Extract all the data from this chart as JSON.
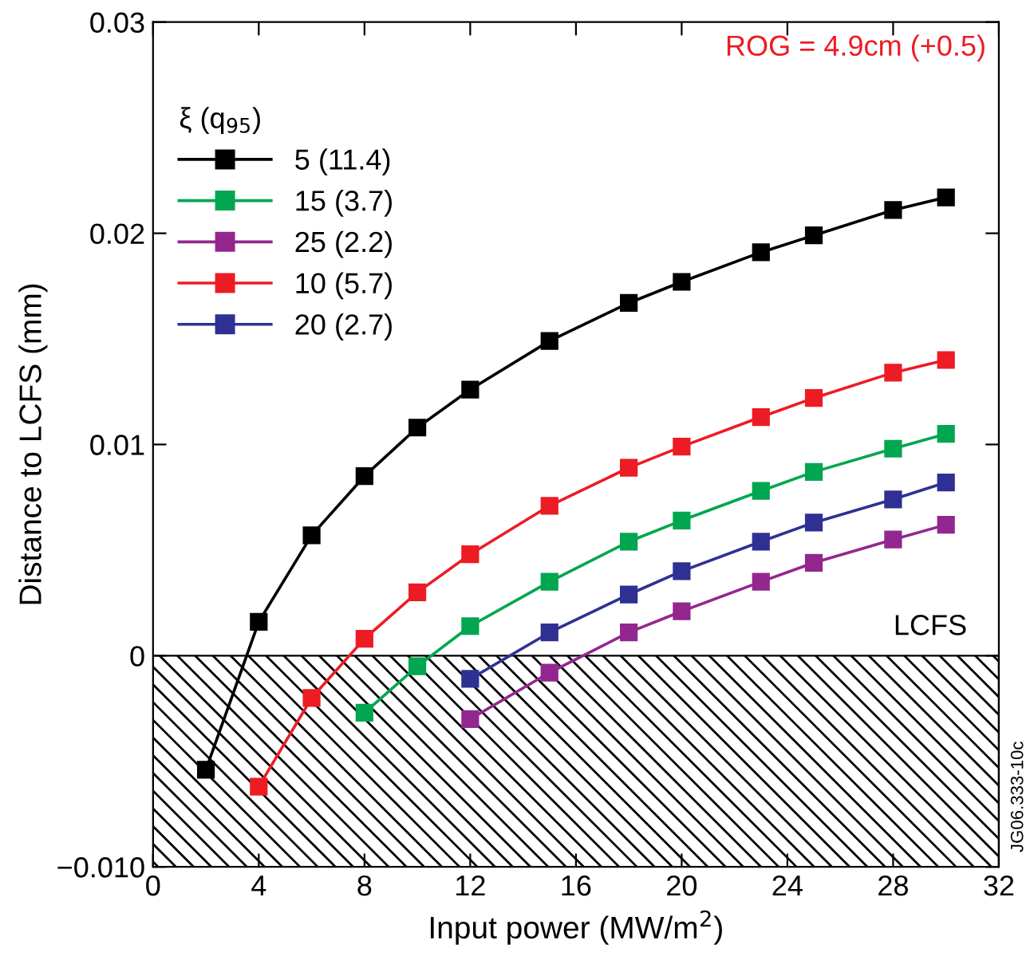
{
  "chart_data": {
    "type": "line",
    "xlabel": "Input power (MW/m$^{2}$)",
    "ylabel": "Distance to LCFS (mm)",
    "legend_title": "ξ (q$_{95}$)",
    "legend": "top left",
    "marker": "square",
    "line_style": "solid",
    "grid": false,
    "xlim": [
      0,
      32
    ],
    "xticks": [
      0,
      4,
      8,
      12,
      16,
      20,
      24,
      28,
      32
    ],
    "ylim": [
      -0.01,
      0.03
    ],
    "yticks": [
      {
        "value": -0.01,
        "label": "−0.010"
      },
      0,
      0.01,
      0.02,
      0.03
    ],
    "series": [
      {
        "name": "5 (11.4)",
        "color": "#000000",
        "x": [
          2,
          4,
          6,
          8,
          10,
          12,
          15,
          18,
          20,
          23,
          25,
          28,
          30
        ],
        "values": [
          -0.0054,
          0.0016,
          0.0057,
          0.0085,
          0.0108,
          0.0126,
          0.0149,
          0.0167,
          0.0177,
          0.0191,
          0.0199,
          0.0211,
          0.0217
        ]
      },
      {
        "name": "15 (3.7)",
        "color": "#00a650",
        "x": [
          8,
          10,
          12,
          15,
          18,
          20,
          23,
          25,
          28,
          30
        ],
        "values": [
          -0.0027,
          -0.0005,
          0.0014,
          0.0035,
          0.0054,
          0.0064,
          0.0078,
          0.0087,
          0.0098,
          0.0105
        ]
      },
      {
        "name": "25 (2.2)",
        "color": "#92278f",
        "x": [
          12,
          15,
          18,
          20,
          23,
          25,
          28,
          30
        ],
        "values": [
          -0.003,
          -0.0008,
          0.0011,
          0.0021,
          0.0035,
          0.0044,
          0.0055,
          0.0062
        ]
      },
      {
        "name": "10 (5.7)",
        "color": "#ed1c24",
        "x": [
          4,
          6,
          8,
          10,
          12,
          15,
          18,
          20,
          23,
          25,
          28,
          30
        ],
        "values": [
          -0.0062,
          -0.002,
          0.0008,
          0.003,
          0.0048,
          0.0071,
          0.0089,
          0.0099,
          0.0113,
          0.0122,
          0.0134,
          0.014
        ]
      },
      {
        "name": "20 (2.7)",
        "color": "#2e3192",
        "x": [
          12,
          15,
          18,
          20,
          23,
          25,
          28,
          30
        ],
        "values": [
          -0.0011,
          0.0011,
          0.0029,
          0.004,
          0.0054,
          0.0063,
          0.0074,
          0.0082
        ]
      }
    ],
    "bands": [
      {
        "axis": "y",
        "from": -0.01,
        "to": 0,
        "label": "LCFS",
        "color": "#000000"
      }
    ],
    "annotations": [
      "ROG = 4.9cm (+0.5)",
      "JG06.333-10c"
    ]
  }
}
